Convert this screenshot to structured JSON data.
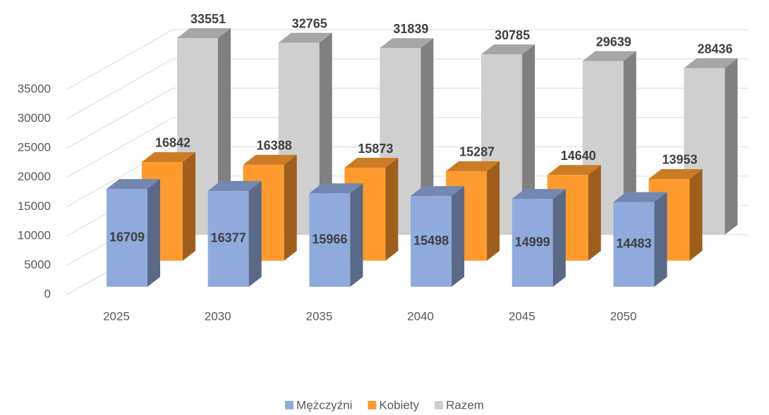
{
  "chart_data": {
    "type": "bar3d",
    "categories": [
      "2025",
      "2030",
      "2035",
      "2040",
      "2045",
      "2050"
    ],
    "series": [
      {
        "name": "Mężczyźni",
        "color": "#8faadc",
        "values": [
          16709,
          16377,
          15966,
          15498,
          14999,
          14483
        ]
      },
      {
        "name": "Kobiety",
        "color": "#ff9a2e",
        "values": [
          16842,
          16388,
          15873,
          15287,
          14640,
          13953
        ]
      },
      {
        "name": "Razem",
        "color": "#d0cfd0",
        "values": [
          33551,
          32765,
          31839,
          30785,
          29639,
          28436
        ]
      }
    ],
    "ylim": [
      0,
      35000
    ],
    "yticks": [
      0,
      5000,
      10000,
      15000,
      20000,
      25000,
      30000,
      35000
    ],
    "grid": true,
    "legend": "bottom"
  }
}
